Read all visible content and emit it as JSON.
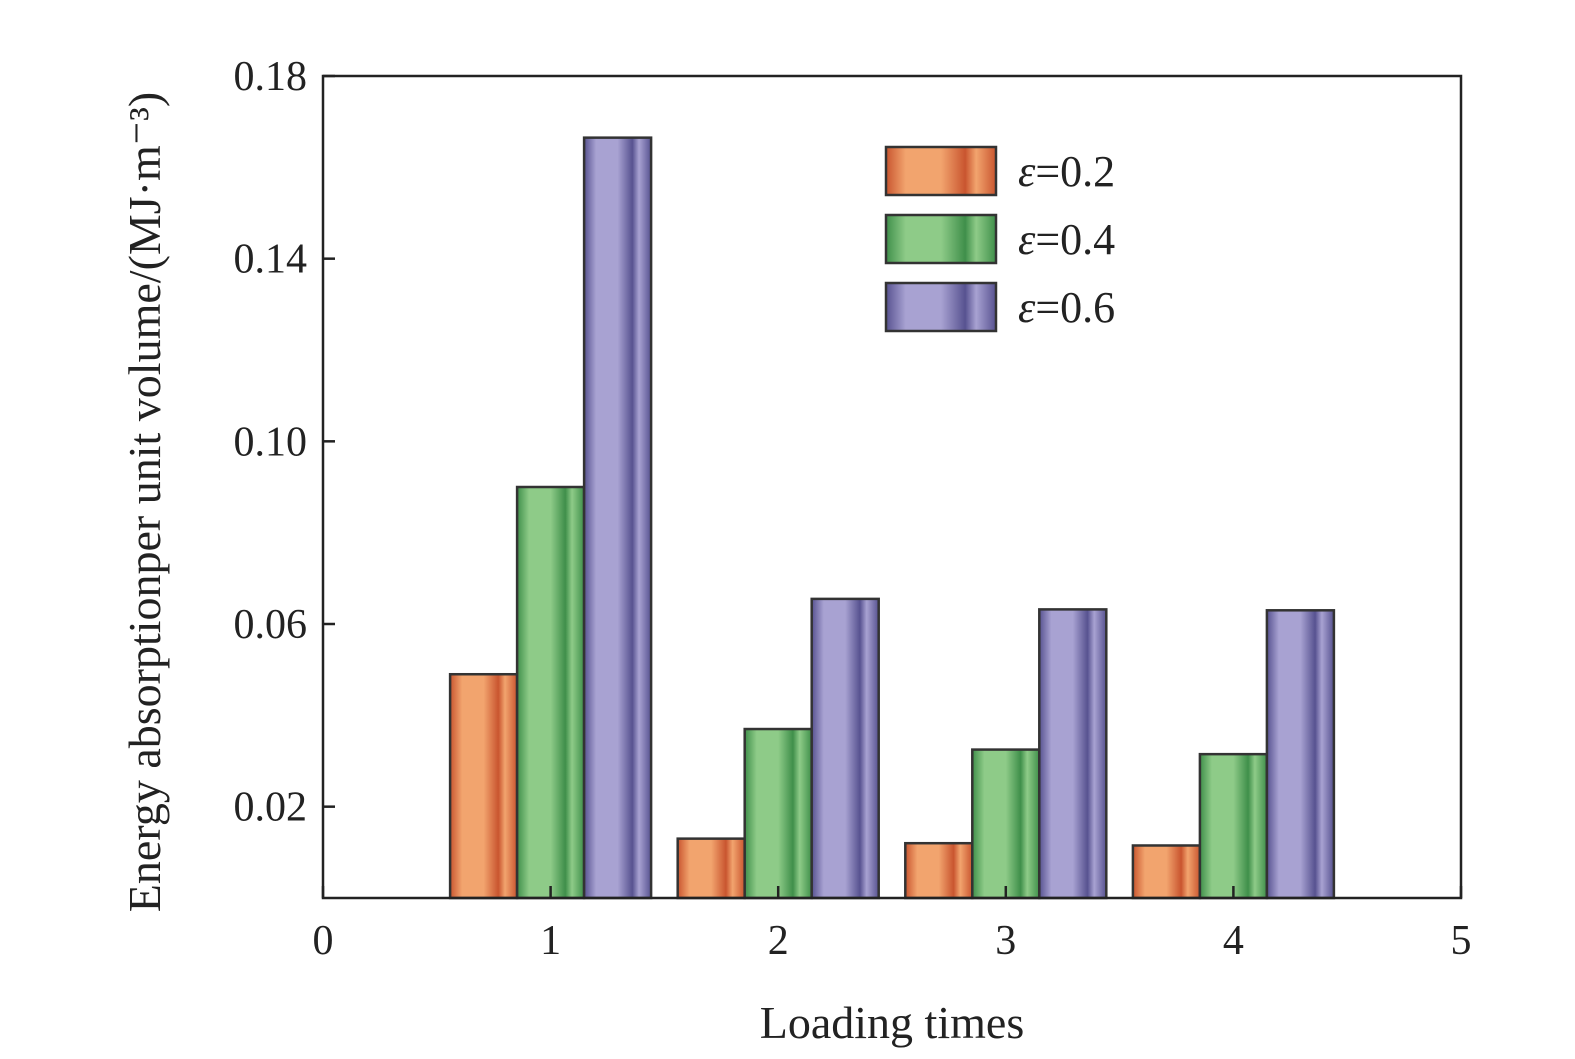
{
  "chart_data": {
    "type": "bar",
    "title": "",
    "xlabel": "Loading times",
    "ylabel": "Energy absorptionper unit volume/(MJ·m⁻³)",
    "categories": [
      1,
      2,
      3,
      4
    ],
    "xlim": [
      0,
      5
    ],
    "xticks": [
      0,
      1,
      2,
      3,
      4,
      5
    ],
    "xtick_labels": [
      "0",
      "1",
      "2",
      "3",
      "4",
      "5"
    ],
    "ylim": [
      0,
      0.18
    ],
    "yticks": [
      0.02,
      0.06,
      0.1,
      0.14,
      0.18
    ],
    "ytick_labels": [
      "0.02",
      "0.06",
      "0.10",
      "0.14",
      "0.18"
    ],
    "grid": false,
    "legend_position": "top-center",
    "series": [
      {
        "name": "ε=0.2",
        "legend_symbol": "ε",
        "legend_value": "=0.2",
        "color": "#f2a46e",
        "color_dark": "#c9552f",
        "values": [
          0.049,
          0.013,
          0.012,
          0.0115
        ]
      },
      {
        "name": "ε=0.4",
        "legend_symbol": "ε",
        "legend_value": "=0.4",
        "color": "#8ecb88",
        "color_dark": "#3f8f4a",
        "values": [
          0.09,
          0.037,
          0.0325,
          0.0315
        ]
      },
      {
        "name": "ε=0.6",
        "legend_symbol": "ε",
        "legend_value": "=0.6",
        "color": "#a8a2d2",
        "color_dark": "#575290",
        "values": [
          0.1665,
          0.0655,
          0.0632,
          0.063
        ]
      }
    ]
  }
}
